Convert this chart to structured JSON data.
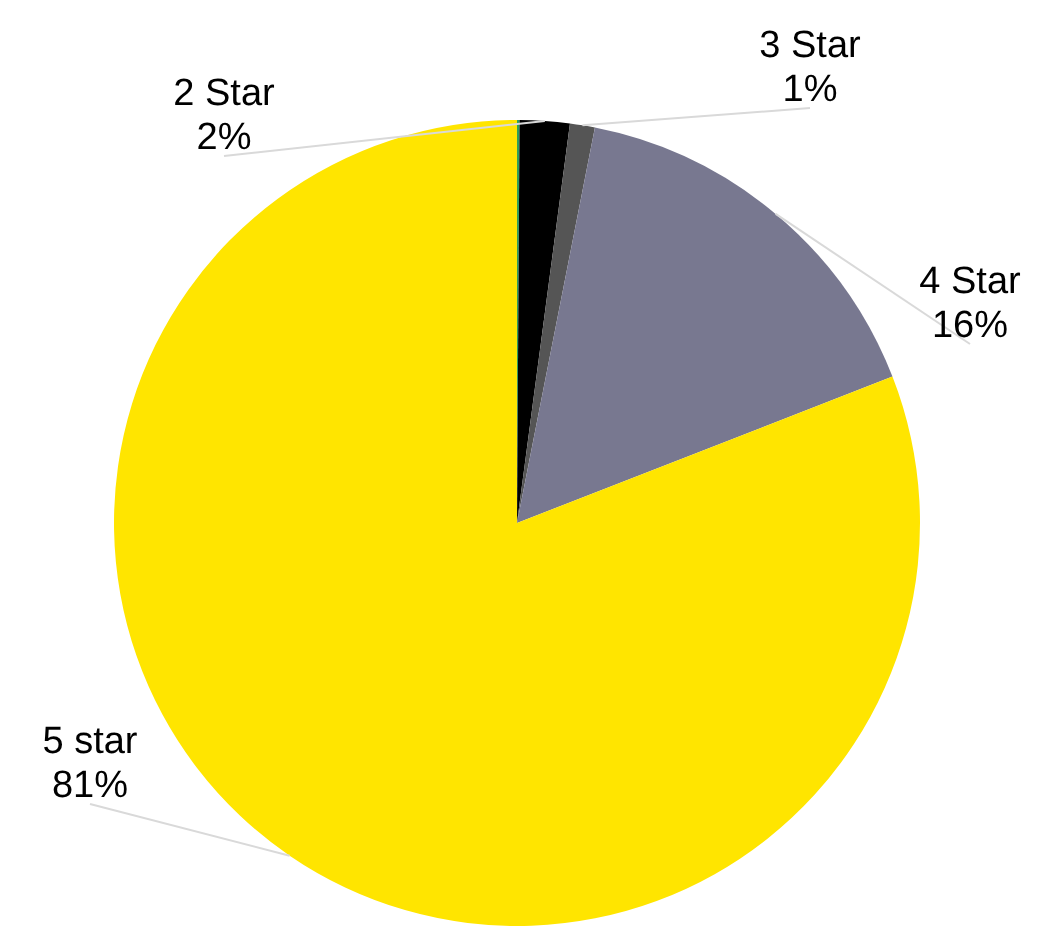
{
  "chart_data": {
    "type": "pie",
    "categories": [
      null,
      "2 Star",
      "3 Star",
      "4 Star",
      "5 star"
    ],
    "values": [
      0.1,
      2,
      1,
      16,
      81
    ],
    "value_labels": [
      null,
      "2%",
      "1%",
      "16%",
      "81%"
    ],
    "colors": [
      "#2e9e5a",
      "#000000",
      "#555555",
      "#787890",
      "#ffe500"
    ],
    "legend": false
  }
}
